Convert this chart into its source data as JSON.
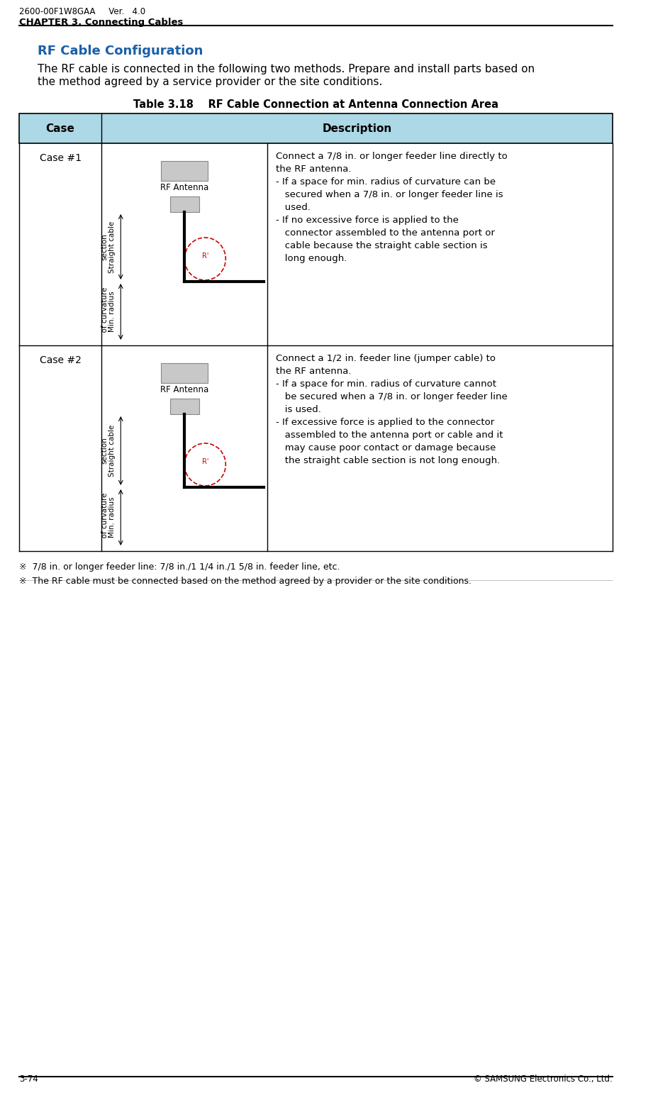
{
  "header_left": "2600-00F1W8GAA     Ver.   4.0",
  "header_left2": "CHAPTER 3. Connecting Cables",
  "footer_left": "3-74",
  "footer_right": "© SAMSUNG Electronics Co., Ltd.",
  "section_title": "RF Cable Configuration",
  "intro_line1": "The RF cable is connected in the following two methods. Prepare and install parts based on",
  "intro_line2": "the method agreed by a service provider or the site conditions.",
  "table_title": "Table 3.18    RF Cable Connection at Antenna Connection Area",
  "col_header_case": "Case",
  "col_header_desc": "Description",
  "header_bg": "#add8e6",
  "case1_label": "Case #1",
  "case1_desc_lines": [
    "Connect a 7/8 in. or longer feeder line directly to",
    "the RF antenna.",
    "- If a space for min. radius of curvature can be",
    "   secured when a 7/8 in. or longer feeder line is",
    "   used.",
    "- If no excessive force is applied to the",
    "   connector assembled to the antenna port or",
    "   cable because the straight cable section is",
    "   long enough."
  ],
  "case2_label": "Case #2",
  "case2_desc_lines": [
    "Connect a 1/2 in. feeder line (jumper cable) to",
    "the RF antenna.",
    "- If a space for min. radius of curvature cannot",
    "   be secured when a 7/8 in. or longer feeder line",
    "   is used.",
    "- If excessive force is applied to the connector",
    "   assembled to the antenna port or cable and it",
    "   may cause poor contact or damage because",
    "   the straight cable section is not long enough."
  ],
  "note1": "※  7/8 in. or longer feeder line: 7/8 in./1 1/4 in./1 5/8 in. feeder line, etc.",
  "note2": "※  The RF cable must be connected based on the method agreed by a provider or the site conditions.",
  "rf_antenna_label": "RF Antenna",
  "straight_cable_line1": "Straight cable",
  "straight_cable_line2": "section",
  "min_radius_line1": "Min. radius",
  "min_radius_line2": "  of curvature",
  "r_prime_label": "R'",
  "title_color": "#1a5fa8",
  "black": "#000000",
  "white": "#ffffff",
  "light_gray": "#c8c8c8",
  "table_border": "#000000"
}
